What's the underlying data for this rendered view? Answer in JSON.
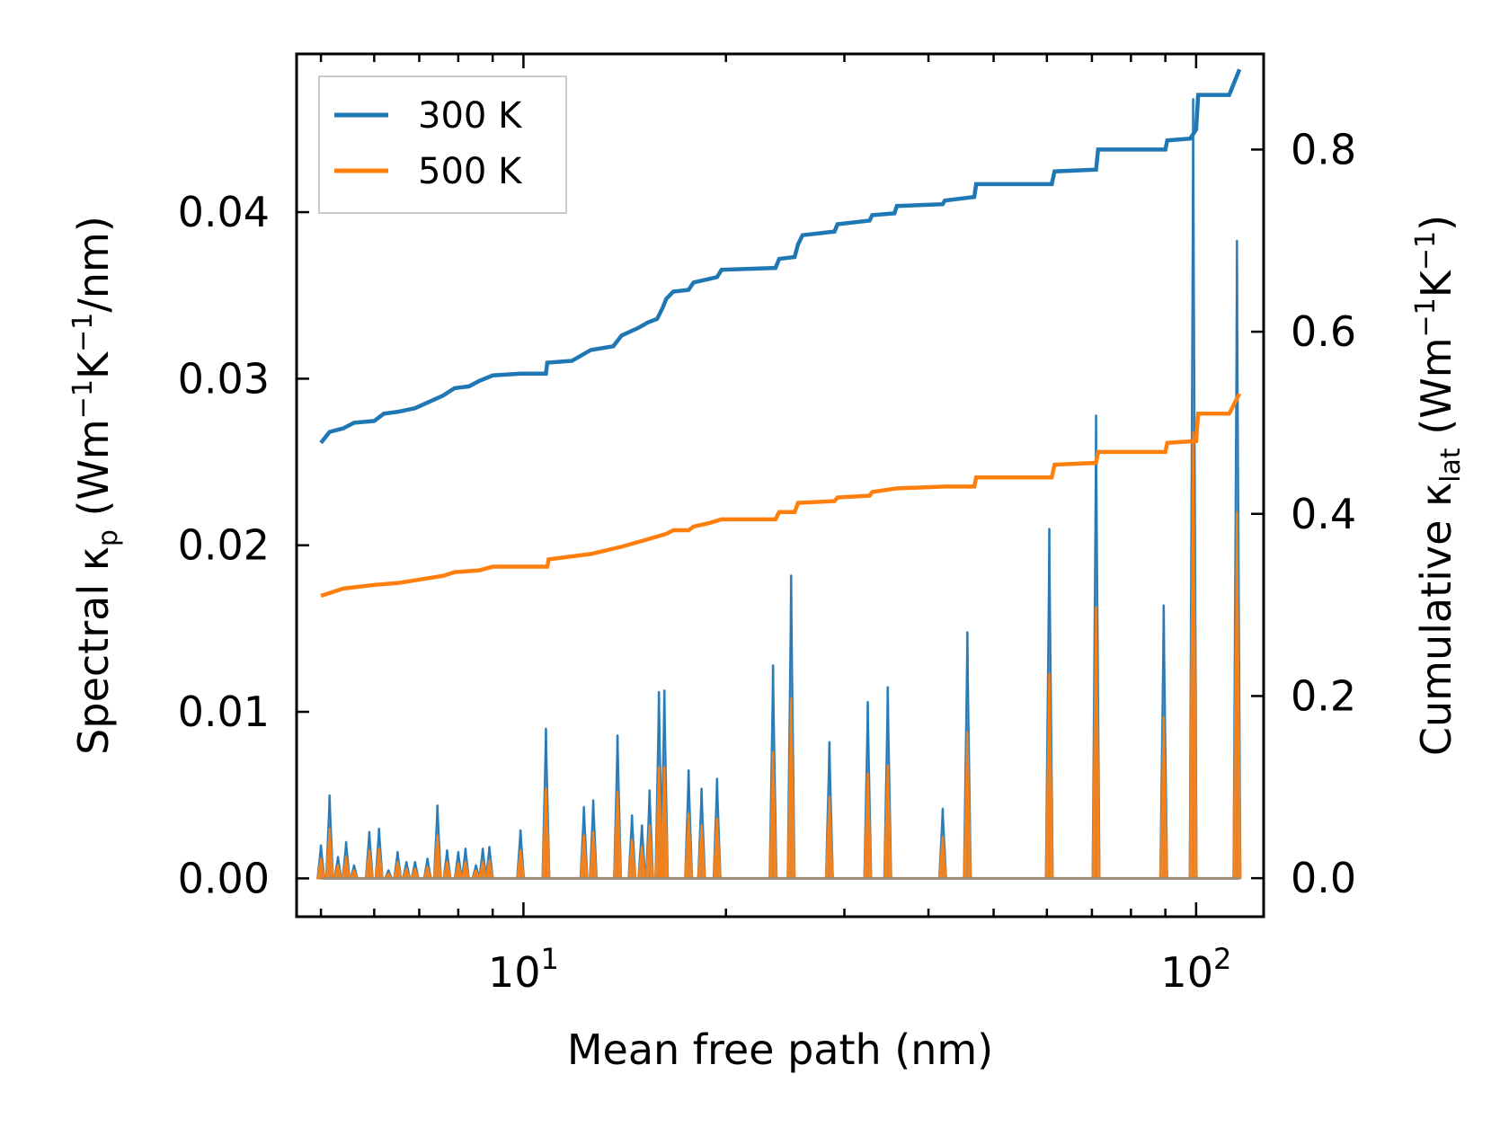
{
  "chart_data": {
    "type": "line",
    "title": "",
    "xlabel": "Mean free path (nm)",
    "xscale": "log",
    "xlim": [
      4.6,
      126
    ],
    "x_ticks": [
      {
        "value": 10,
        "base": "10",
        "exp": "1"
      },
      {
        "value": 100,
        "base": "10",
        "exp": "2"
      }
    ],
    "ylabel_left": {
      "pre": "Spectral κ",
      "sub": "p",
      "mid": " (Wm",
      "sup1": "−1",
      "mid2": "K",
      "sup2": "−1",
      "post": "/nm)"
    },
    "ylim_left": [
      -0.0023,
      0.0495
    ],
    "yticks_left": [
      "0.00",
      "0.01",
      "0.02",
      "0.03",
      "0.04"
    ],
    "ylabel_right": {
      "pre": "Cumulative κ",
      "sub": "lat",
      "mid": " (Wm",
      "sup1": "−1",
      "mid2": "K",
      "sup2": "−1",
      "post": ")"
    },
    "ylim_right": [
      -0.0423,
      0.905
    ],
    "yticks_right": [
      "0.0",
      "0.2",
      "0.4",
      "0.6",
      "0.8"
    ],
    "legend": {
      "position": "top-left",
      "entries": [
        {
          "label": "300 K",
          "color": "#1f77b4"
        },
        {
          "label": "500 K",
          "color": "#ff7f0e"
        }
      ]
    },
    "series": [
      {
        "name": "300 K cumulative",
        "axis": "right",
        "color": "#1f77b4",
        "points": [
          [
            5.0,
            0.478
          ],
          [
            5.15,
            0.49
          ],
          [
            5.4,
            0.494
          ],
          [
            5.6,
            0.5
          ],
          [
            6.0,
            0.502
          ],
          [
            6.2,
            0.51
          ],
          [
            6.5,
            0.512
          ],
          [
            6.9,
            0.516
          ],
          [
            7.6,
            0.53
          ],
          [
            7.9,
            0.538
          ],
          [
            8.3,
            0.54
          ],
          [
            8.6,
            0.546
          ],
          [
            9.0,
            0.552
          ],
          [
            9.9,
            0.554
          ],
          [
            10.8,
            0.554
          ],
          [
            10.85,
            0.566
          ],
          [
            11.8,
            0.568
          ],
          [
            12.6,
            0.58
          ],
          [
            13.6,
            0.584
          ],
          [
            14.0,
            0.596
          ],
          [
            14.8,
            0.604
          ],
          [
            15.3,
            0.61
          ],
          [
            15.8,
            0.614
          ],
          [
            16.1,
            0.626
          ],
          [
            16.3,
            0.636
          ],
          [
            16.7,
            0.644
          ],
          [
            17.6,
            0.646
          ],
          [
            17.9,
            0.654
          ],
          [
            18.9,
            0.658
          ],
          [
            19.4,
            0.66
          ],
          [
            19.7,
            0.668
          ],
          [
            23.7,
            0.67
          ],
          [
            24.0,
            0.68
          ],
          [
            25.3,
            0.682
          ],
          [
            25.6,
            0.696
          ],
          [
            26.0,
            0.706
          ],
          [
            29.0,
            0.71
          ],
          [
            29.3,
            0.718
          ],
          [
            32.7,
            0.722
          ],
          [
            33.0,
            0.728
          ],
          [
            35.6,
            0.73
          ],
          [
            35.9,
            0.738
          ],
          [
            42.0,
            0.74
          ],
          [
            42.3,
            0.744
          ],
          [
            46.8,
            0.748
          ],
          [
            47.1,
            0.762
          ],
          [
            61.0,
            0.762
          ],
          [
            61.6,
            0.776
          ],
          [
            71.0,
            0.778
          ],
          [
            71.5,
            0.8
          ],
          [
            90.0,
            0.8
          ],
          [
            90.6,
            0.81
          ],
          [
            98.0,
            0.812
          ],
          [
            100.0,
            0.822
          ],
          [
            100.7,
            0.86
          ],
          [
            112.0,
            0.86
          ],
          [
            116.0,
            0.888
          ]
        ],
        "peaks": [
          [
            5.0,
            0.002
          ],
          [
            5.15,
            0.005
          ],
          [
            5.3,
            0.0013
          ],
          [
            5.45,
            0.0022
          ],
          [
            5.6,
            0.0008
          ],
          [
            5.9,
            0.0028
          ],
          [
            6.1,
            0.003
          ],
          [
            6.3,
            0.0005
          ],
          [
            6.5,
            0.0016
          ],
          [
            6.7,
            0.001
          ],
          [
            6.9,
            0.001
          ],
          [
            7.2,
            0.0012
          ],
          [
            7.45,
            0.0044
          ],
          [
            7.7,
            0.0017
          ],
          [
            8.0,
            0.0016
          ],
          [
            8.2,
            0.0018
          ],
          [
            8.5,
            0.0008
          ],
          [
            8.7,
            0.0018
          ],
          [
            8.9,
            0.0019
          ],
          [
            9.9,
            0.0029
          ],
          [
            10.8,
            0.009
          ],
          [
            12.3,
            0.0043
          ],
          [
            12.7,
            0.0047
          ],
          [
            13.8,
            0.0086
          ],
          [
            14.5,
            0.0038
          ],
          [
            15.0,
            0.0032
          ],
          [
            15.4,
            0.0053
          ],
          [
            15.9,
            0.0112
          ],
          [
            16.2,
            0.0113
          ],
          [
            17.6,
            0.0065
          ],
          [
            18.4,
            0.0054
          ],
          [
            19.4,
            0.006
          ],
          [
            23.5,
            0.0128
          ],
          [
            25.0,
            0.0182
          ],
          [
            28.5,
            0.0082
          ],
          [
            32.5,
            0.0106
          ],
          [
            34.8,
            0.0115
          ],
          [
            42.0,
            0.0042
          ],
          [
            45.7,
            0.0148
          ],
          [
            60.5,
            0.021
          ],
          [
            71.0,
            0.0278
          ],
          [
            89.5,
            0.0164
          ],
          [
            99.0,
            0.0468
          ],
          [
            115.0,
            0.0383
          ]
        ]
      },
      {
        "name": "500 K cumulative",
        "axis": "right",
        "color": "#ff7f0e",
        "points": [
          [
            5.0,
            0.31
          ],
          [
            5.4,
            0.318
          ],
          [
            6.0,
            0.322
          ],
          [
            6.5,
            0.324
          ],
          [
            7.6,
            0.332
          ],
          [
            7.9,
            0.336
          ],
          [
            8.6,
            0.338
          ],
          [
            9.0,
            0.342
          ],
          [
            10.85,
            0.342
          ],
          [
            10.9,
            0.35
          ],
          [
            12.6,
            0.356
          ],
          [
            14.0,
            0.364
          ],
          [
            15.3,
            0.372
          ],
          [
            16.3,
            0.378
          ],
          [
            16.7,
            0.382
          ],
          [
            17.6,
            0.382
          ],
          [
            17.9,
            0.386
          ],
          [
            18.9,
            0.39
          ],
          [
            19.7,
            0.394
          ],
          [
            23.7,
            0.394
          ],
          [
            24.0,
            0.402
          ],
          [
            25.3,
            0.402
          ],
          [
            25.6,
            0.412
          ],
          [
            29.0,
            0.414
          ],
          [
            29.3,
            0.418
          ],
          [
            32.7,
            0.42
          ],
          [
            33.0,
            0.424
          ],
          [
            35.9,
            0.428
          ],
          [
            42.3,
            0.43
          ],
          [
            46.8,
            0.43
          ],
          [
            47.1,
            0.44
          ],
          [
            61.0,
            0.44
          ],
          [
            61.6,
            0.454
          ],
          [
            71.0,
            0.456
          ],
          [
            71.5,
            0.468
          ],
          [
            90.0,
            0.468
          ],
          [
            90.6,
            0.478
          ],
          [
            100.0,
            0.48
          ],
          [
            100.7,
            0.51
          ],
          [
            112.0,
            0.51
          ],
          [
            116.0,
            0.532
          ]
        ],
        "peaks": [
          [
            5.0,
            0.0012
          ],
          [
            5.15,
            0.003
          ],
          [
            5.3,
            0.0008
          ],
          [
            5.45,
            0.0013
          ],
          [
            5.6,
            0.0005
          ],
          [
            5.9,
            0.0017
          ],
          [
            6.1,
            0.0018
          ],
          [
            6.3,
            0.0003
          ],
          [
            6.5,
            0.001
          ],
          [
            6.7,
            0.0006
          ],
          [
            6.9,
            0.0006
          ],
          [
            7.2,
            0.0007
          ],
          [
            7.45,
            0.0026
          ],
          [
            7.7,
            0.001
          ],
          [
            8.0,
            0.0009
          ],
          [
            8.2,
            0.001
          ],
          [
            8.5,
            0.0005
          ],
          [
            8.7,
            0.001
          ],
          [
            8.9,
            0.0011
          ],
          [
            9.9,
            0.0017
          ],
          [
            10.8,
            0.0054
          ],
          [
            12.3,
            0.0026
          ],
          [
            12.7,
            0.0028
          ],
          [
            13.8,
            0.0052
          ],
          [
            14.5,
            0.0023
          ],
          [
            15.0,
            0.0019
          ],
          [
            15.4,
            0.0032
          ],
          [
            15.9,
            0.0067
          ],
          [
            16.2,
            0.0067
          ],
          [
            17.6,
            0.0039
          ],
          [
            18.4,
            0.0032
          ],
          [
            19.4,
            0.0036
          ],
          [
            23.5,
            0.0076
          ],
          [
            25.0,
            0.0108
          ],
          [
            28.5,
            0.0049
          ],
          [
            32.5,
            0.0063
          ],
          [
            34.8,
            0.0068
          ],
          [
            42.0,
            0.0025
          ],
          [
            45.7,
            0.0088
          ],
          [
            60.5,
            0.0123
          ],
          [
            71.0,
            0.0163
          ],
          [
            89.5,
            0.0097
          ],
          [
            99.0,
            0.0268
          ],
          [
            115.0,
            0.022
          ]
        ]
      }
    ]
  }
}
